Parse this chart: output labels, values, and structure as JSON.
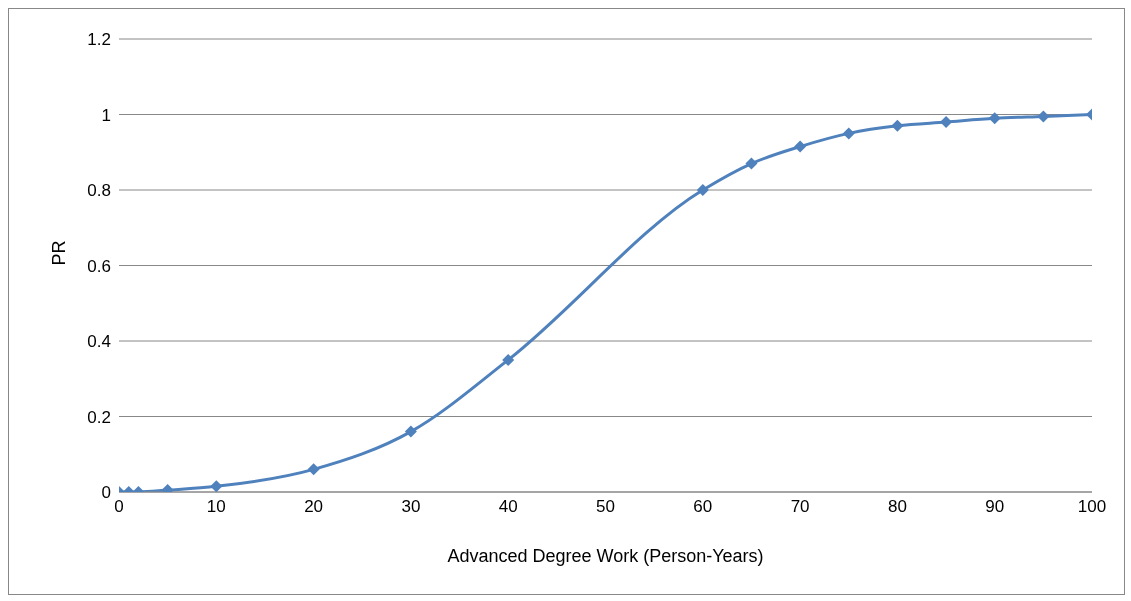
{
  "chart_data": {
    "type": "line",
    "xlabel": "Advanced Degree Work (Person-Years)",
    "ylabel": "PR",
    "x": [
      0,
      1,
      2,
      5,
      10,
      20,
      30,
      40,
      60,
      65,
      70,
      75,
      80,
      85,
      90,
      95,
      100
    ],
    "series": [
      {
        "color": "#4f81bd",
        "values": [
          0,
          0,
          0,
          0.005,
          0.015,
          0.06,
          0.16,
          0.35,
          0.8,
          0.87,
          0.915,
          0.95,
          0.97,
          0.98,
          0.99,
          0.995,
          1.0
        ]
      }
    ],
    "xlim": [
      0,
      100
    ],
    "xticks": [
      0,
      10,
      20,
      30,
      40,
      50,
      60,
      70,
      80,
      90,
      100
    ],
    "ylim": [
      0,
      1.2
    ],
    "yticks": [
      0,
      0.2,
      0.4,
      0.6,
      0.8,
      1,
      1.2
    ],
    "grid": "y",
    "marker": "diamond",
    "line_style": "solid",
    "legend": false
  }
}
